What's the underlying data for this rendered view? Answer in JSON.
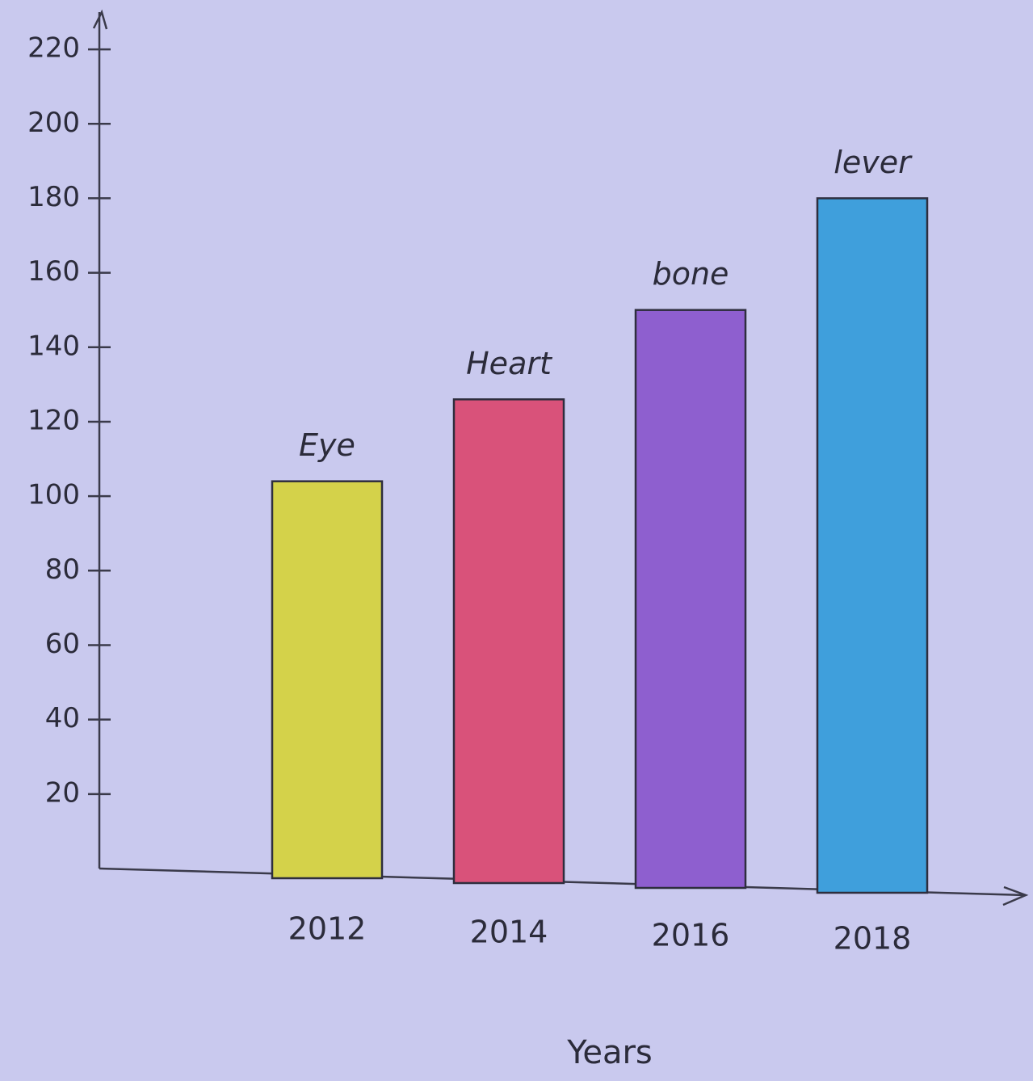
{
  "chart_data": {
    "type": "bar",
    "categories": [
      "2012",
      "2014",
      "2016",
      "2018"
    ],
    "values": [
      104,
      126,
      150,
      180
    ],
    "annotations": [
      "Eye",
      "Heart",
      "bone",
      "lever"
    ],
    "colors": [
      "#d4d24a",
      "#d9527a",
      "#8e5fcf",
      "#3f9fdc"
    ],
    "x_label": "Years",
    "ylim": [
      0,
      230
    ],
    "yticks": [
      20,
      40,
      60,
      80,
      100,
      120,
      140,
      160,
      180,
      200,
      220
    ]
  }
}
